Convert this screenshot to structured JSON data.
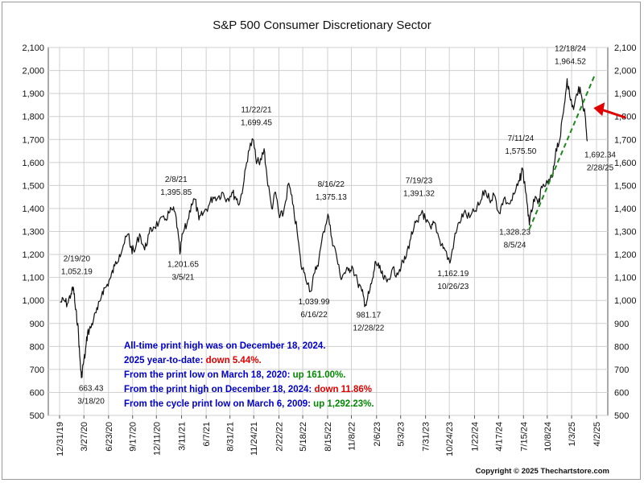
{
  "chart_data": {
    "type": "line",
    "title": "S&P 500 Consumer Discretionary Sector",
    "xlabel": "",
    "ylabel": "",
    "ylim": [
      500,
      2100
    ],
    "y_ticks": [
      500,
      600,
      700,
      800,
      900,
      1000,
      1100,
      1200,
      1300,
      1400,
      1500,
      1600,
      1700,
      1800,
      1900,
      2000,
      2100
    ],
    "y_tick_labels": [
      "500",
      "600",
      "700",
      "800",
      "900",
      "1,000",
      "1,100",
      "1,200",
      "1,300",
      "1,400",
      "1,500",
      "1,600",
      "1,700",
      "1,800",
      "1,900",
      "2,000",
      "2,100"
    ],
    "x_range": [
      "2019-12-31",
      "2025-04-02"
    ],
    "x_ticks": [
      {
        "date": "2019-12-31",
        "label": "12/31/19"
      },
      {
        "date": "2020-03-27",
        "label": "3/27/20"
      },
      {
        "date": "2020-06-23",
        "label": "6/23/20"
      },
      {
        "date": "2020-09-17",
        "label": "9/17/20"
      },
      {
        "date": "2020-12-11",
        "label": "12/11/20"
      },
      {
        "date": "2021-03-11",
        "label": "3/11/21"
      },
      {
        "date": "2021-06-07",
        "label": "6/7/21"
      },
      {
        "date": "2021-08-31",
        "label": "8/31/21"
      },
      {
        "date": "2021-11-24",
        "label": "11/24/21"
      },
      {
        "date": "2022-02-22",
        "label": "2/22/22"
      },
      {
        "date": "2022-05-18",
        "label": "5/18/22"
      },
      {
        "date": "2022-08-15",
        "label": "8/15/22"
      },
      {
        "date": "2022-11-08",
        "label": "11/8/22"
      },
      {
        "date": "2023-02-06",
        "label": "2/6/23"
      },
      {
        "date": "2023-05-03",
        "label": "5/3/23"
      },
      {
        "date": "2023-07-31",
        "label": "7/31/23"
      },
      {
        "date": "2023-10-24",
        "label": "10/24/23"
      },
      {
        "date": "2024-01-22",
        "label": "1/22/24"
      },
      {
        "date": "2024-04-17",
        "label": "4/17/24"
      },
      {
        "date": "2024-07-15",
        "label": "7/15/24"
      },
      {
        "date": "2024-10-08",
        "label": "10/8/24"
      },
      {
        "date": "2025-01-03",
        "label": "1/3/25"
      },
      {
        "date": "2025-04-02",
        "label": "4/2/25"
      }
    ],
    "grid": true,
    "series": [
      {
        "color": "#111111",
        "points": [
          [
            "2020-01-02",
            992
          ],
          [
            "2020-01-15",
            1000
          ],
          [
            "2020-01-28",
            985
          ],
          [
            "2020-02-10",
            1030
          ],
          [
            "2020-02-19",
            1052.19
          ],
          [
            "2020-02-26",
            960
          ],
          [
            "2020-03-05",
            900
          ],
          [
            "2020-03-12",
            760
          ],
          [
            "2020-03-18",
            663.43
          ],
          [
            "2020-03-24",
            720
          ],
          [
            "2020-04-01",
            770
          ],
          [
            "2020-04-09",
            860
          ],
          [
            "2020-04-20",
            880
          ],
          [
            "2020-05-01",
            920
          ],
          [
            "2020-05-15",
            960
          ],
          [
            "2020-06-01",
            1040
          ],
          [
            "2020-06-15",
            1060
          ],
          [
            "2020-07-01",
            1100
          ],
          [
            "2020-07-15",
            1150
          ],
          [
            "2020-08-01",
            1200
          ],
          [
            "2020-08-15",
            1240
          ],
          [
            "2020-09-02",
            1290
          ],
          [
            "2020-09-10",
            1230
          ],
          [
            "2020-09-23",
            1210
          ],
          [
            "2020-10-12",
            1290
          ],
          [
            "2020-10-30",
            1220
          ],
          [
            "2020-11-15",
            1290
          ],
          [
            "2020-12-01",
            1320
          ],
          [
            "2020-12-20",
            1340
          ],
          [
            "2021-01-10",
            1350
          ],
          [
            "2021-01-25",
            1380
          ],
          [
            "2021-02-08",
            1395.85
          ],
          [
            "2021-02-20",
            1360
          ],
          [
            "2021-03-05",
            1201.65
          ],
          [
            "2021-03-15",
            1290
          ],
          [
            "2021-03-30",
            1330
          ],
          [
            "2021-04-15",
            1420
          ],
          [
            "2021-04-28",
            1440
          ],
          [
            "2021-05-12",
            1350
          ],
          [
            "2021-05-28",
            1380
          ],
          [
            "2021-06-15",
            1410
          ],
          [
            "2021-07-01",
            1450
          ],
          [
            "2021-07-20",
            1450
          ],
          [
            "2021-08-05",
            1470
          ],
          [
            "2021-08-20",
            1440
          ],
          [
            "2021-09-07",
            1470
          ],
          [
            "2021-09-20",
            1450
          ],
          [
            "2021-10-04",
            1420
          ],
          [
            "2021-10-20",
            1520
          ],
          [
            "2021-11-05",
            1650
          ],
          [
            "2021-11-22",
            1699.45
          ],
          [
            "2021-12-01",
            1620
          ],
          [
            "2021-12-15",
            1590
          ],
          [
            "2021-12-31",
            1660
          ],
          [
            "2022-01-10",
            1540
          ],
          [
            "2022-01-27",
            1400
          ],
          [
            "2022-02-10",
            1470
          ],
          [
            "2022-02-24",
            1360
          ],
          [
            "2022-03-10",
            1380
          ],
          [
            "2022-03-29",
            1510
          ],
          [
            "2022-04-12",
            1420
          ],
          [
            "2022-04-28",
            1300
          ],
          [
            "2022-05-12",
            1150
          ],
          [
            "2022-05-25",
            1120
          ],
          [
            "2022-06-16",
            1039.99
          ],
          [
            "2022-06-30",
            1120
          ],
          [
            "2022-07-15",
            1180
          ],
          [
            "2022-08-01",
            1300
          ],
          [
            "2022-08-16",
            1375.13
          ],
          [
            "2022-08-30",
            1270
          ],
          [
            "2022-09-15",
            1200
          ],
          [
            "2022-09-30",
            1100
          ],
          [
            "2022-10-14",
            1120
          ],
          [
            "2022-10-28",
            1130
          ],
          [
            "2022-11-10",
            1150
          ],
          [
            "2022-11-30",
            1080
          ],
          [
            "2022-12-15",
            1040
          ],
          [
            "2022-12-28",
            981.17
          ],
          [
            "2023-01-10",
            1030
          ],
          [
            "2023-01-25",
            1100
          ],
          [
            "2023-02-02",
            1170
          ],
          [
            "2023-02-15",
            1140
          ],
          [
            "2023-03-01",
            1100
          ],
          [
            "2023-03-15",
            1080
          ],
          [
            "2023-04-01",
            1130
          ],
          [
            "2023-04-20",
            1120
          ],
          [
            "2023-05-05",
            1150
          ],
          [
            "2023-05-20",
            1180
          ],
          [
            "2023-06-05",
            1260
          ],
          [
            "2023-06-20",
            1320
          ],
          [
            "2023-07-05",
            1340
          ],
          [
            "2023-07-19",
            1391.32
          ],
          [
            "2023-08-02",
            1340
          ],
          [
            "2023-08-20",
            1310
          ],
          [
            "2023-09-01",
            1340
          ],
          [
            "2023-09-20",
            1260
          ],
          [
            "2023-10-05",
            1230
          ],
          [
            "2023-10-26",
            1162.19
          ],
          [
            "2023-11-10",
            1260
          ],
          [
            "2023-11-28",
            1340
          ],
          [
            "2023-12-15",
            1380
          ],
          [
            "2024-01-05",
            1360
          ],
          [
            "2024-01-25",
            1390
          ],
          [
            "2024-02-10",
            1420
          ],
          [
            "2024-02-28",
            1480
          ],
          [
            "2024-03-15",
            1440
          ],
          [
            "2024-04-01",
            1460
          ],
          [
            "2024-04-19",
            1380
          ],
          [
            "2024-05-05",
            1440
          ],
          [
            "2024-05-28",
            1420
          ],
          [
            "2024-06-15",
            1470
          ],
          [
            "2024-07-01",
            1520
          ],
          [
            "2024-07-11",
            1575.5
          ],
          [
            "2024-07-25",
            1460
          ],
          [
            "2024-08-05",
            1328.23
          ],
          [
            "2024-08-20",
            1440
          ],
          [
            "2024-09-05",
            1420
          ],
          [
            "2024-09-20",
            1490
          ],
          [
            "2024-10-10",
            1510
          ],
          [
            "2024-10-28",
            1540
          ],
          [
            "2024-11-08",
            1660
          ],
          [
            "2024-11-22",
            1700
          ],
          [
            "2024-12-05",
            1820
          ],
          [
            "2024-12-18",
            1964.52
          ],
          [
            "2024-12-27",
            1890
          ],
          [
            "2025-01-10",
            1830
          ],
          [
            "2025-01-28",
            1930
          ],
          [
            "2025-02-10",
            1870
          ],
          [
            "2025-02-20",
            1810
          ],
          [
            "2025-02-28",
            1692.34
          ]
        ]
      }
    ],
    "trendline": {
      "color": "#1a8a1a",
      "style": "dashed",
      "from": [
        "2024-08-05",
        1310
      ],
      "to": [
        "2025-03-25",
        1975
      ]
    },
    "arrow": {
      "color": "#e00000",
      "direction": "pointing-left"
    },
    "annotations": [
      {
        "date": "2020-02-19",
        "value": 1052.19,
        "lines": [
          "2/19/20",
          "1,052.19"
        ]
      },
      {
        "date": "2020-03-18",
        "value": 663.43,
        "lines": [
          "663.43",
          "3/18/20"
        ]
      },
      {
        "date": "2021-02-08",
        "value": 1395.85,
        "lines": [
          "2/8/21",
          "1,395.85"
        ]
      },
      {
        "date": "2021-03-05",
        "value": 1201.65,
        "lines": [
          "1,201.65",
          "3/5/21"
        ]
      },
      {
        "date": "2021-11-22",
        "value": 1699.45,
        "lines": [
          "11/22/21",
          "1,699.45"
        ]
      },
      {
        "date": "2022-06-16",
        "value": 1039.99,
        "lines": [
          "1,039.99",
          "6/16/22"
        ]
      },
      {
        "date": "2022-08-16",
        "value": 1375.13,
        "lines": [
          "8/16/22",
          "1,375.13"
        ]
      },
      {
        "date": "2022-12-28",
        "value": 981.17,
        "lines": [
          "981.17",
          "12/28/22"
        ]
      },
      {
        "date": "2023-07-19",
        "value": 1391.32,
        "lines": [
          "7/19/23",
          "1,391.32"
        ]
      },
      {
        "date": "2023-10-26",
        "value": 1162.19,
        "lines": [
          "1,162.19",
          "10/26/23"
        ]
      },
      {
        "date": "2024-07-11",
        "value": 1575.5,
        "lines": [
          "7/11/24",
          "1,575.50"
        ]
      },
      {
        "date": "2024-08-05",
        "value": 1328.23,
        "lines": [
          "1,328.23",
          "8/5/24"
        ]
      },
      {
        "date": "2024-12-18",
        "value": 1964.52,
        "lines": [
          "12/18/24",
          "1,964.52"
        ]
      },
      {
        "date": "2025-02-28",
        "value": 1692.34,
        "lines": [
          "1,692.34",
          "2/28/25"
        ]
      }
    ],
    "info_lines": [
      {
        "text": "All-time print high was on December 18, 2024.",
        "color": "#0000cc",
        "suffix": "",
        "suffix_color": ""
      },
      {
        "text": "2025 year-to-date:  ",
        "color": "#0000cc",
        "suffix": "down 5.44%.",
        "suffix_color": "#e00000"
      },
      {
        "text": "From the print low on March 18, 2020:  ",
        "color": "#0000cc",
        "suffix": "up 161.00%.",
        "suffix_color": "#008800"
      },
      {
        "text": "From the print high on December 18, 2024:  ",
        "color": "#0000cc",
        "suffix": "down 11.86%",
        "suffix_color": "#e00000"
      },
      {
        "text": "From the cycle print low on March 6, 2009:  ",
        "color": "#0000cc",
        "suffix": "up 1,292.23%.",
        "suffix_color": "#008800"
      }
    ],
    "copyright": "Copyright © 2025 Thechartstore.com"
  }
}
